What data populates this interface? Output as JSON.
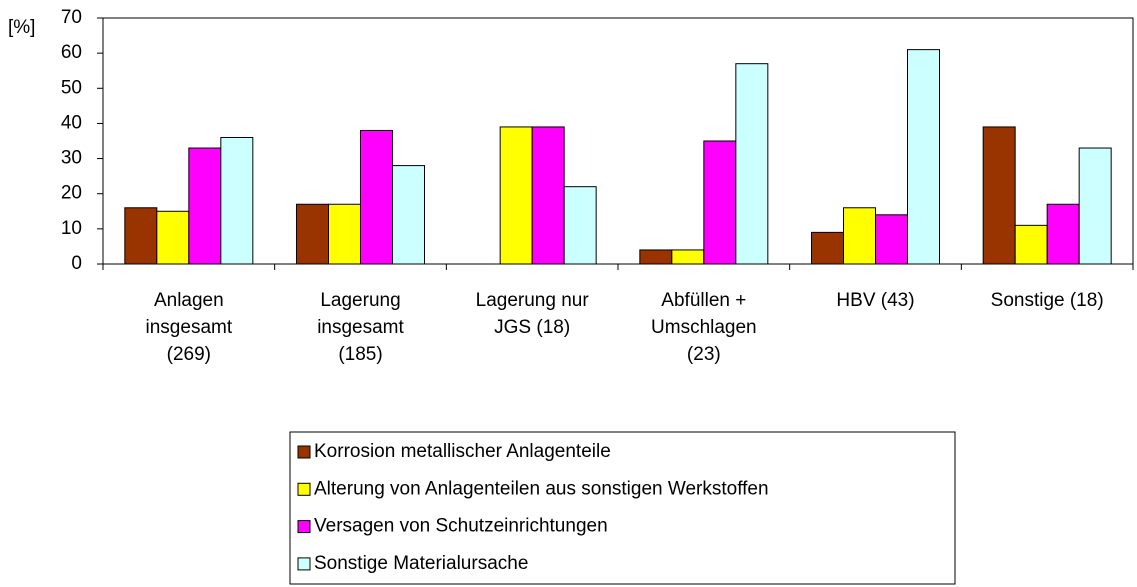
{
  "chart_data": {
    "type": "bar",
    "y_label": "[%]",
    "categories": [
      "Anlagen insgesamt (269)",
      "Lagerung insgesamt (185)",
      "Lagerung nur JGS (18)",
      "Abfüllen + Umschlagen (23)",
      "HBV (43)",
      "Sonstige (18)"
    ],
    "series": [
      {
        "name": "Korrosion metallischer Anlagenteile",
        "color": "#993300",
        "values": [
          16,
          17,
          0,
          4,
          9,
          39
        ]
      },
      {
        "name": "Alterung von Anlagenteilen aus sonstigen Werkstoffen",
        "color": "#ffff00",
        "values": [
          15,
          17,
          39,
          4,
          16,
          11
        ]
      },
      {
        "name": "Versagen von Schutzeinrichtungen",
        "color": "#ff00ff",
        "values": [
          33,
          38,
          39,
          35,
          14,
          17
        ]
      },
      {
        "name": "Sonstige Materialursache",
        "color": "#ccffff",
        "values": [
          36,
          28,
          22,
          57,
          61,
          33
        ]
      }
    ],
    "ylim": [
      0,
      70
    ],
    "yticks": [
      0,
      10,
      20,
      30,
      40,
      50,
      60,
      70
    ],
    "grid": false,
    "legend": "bottom"
  }
}
